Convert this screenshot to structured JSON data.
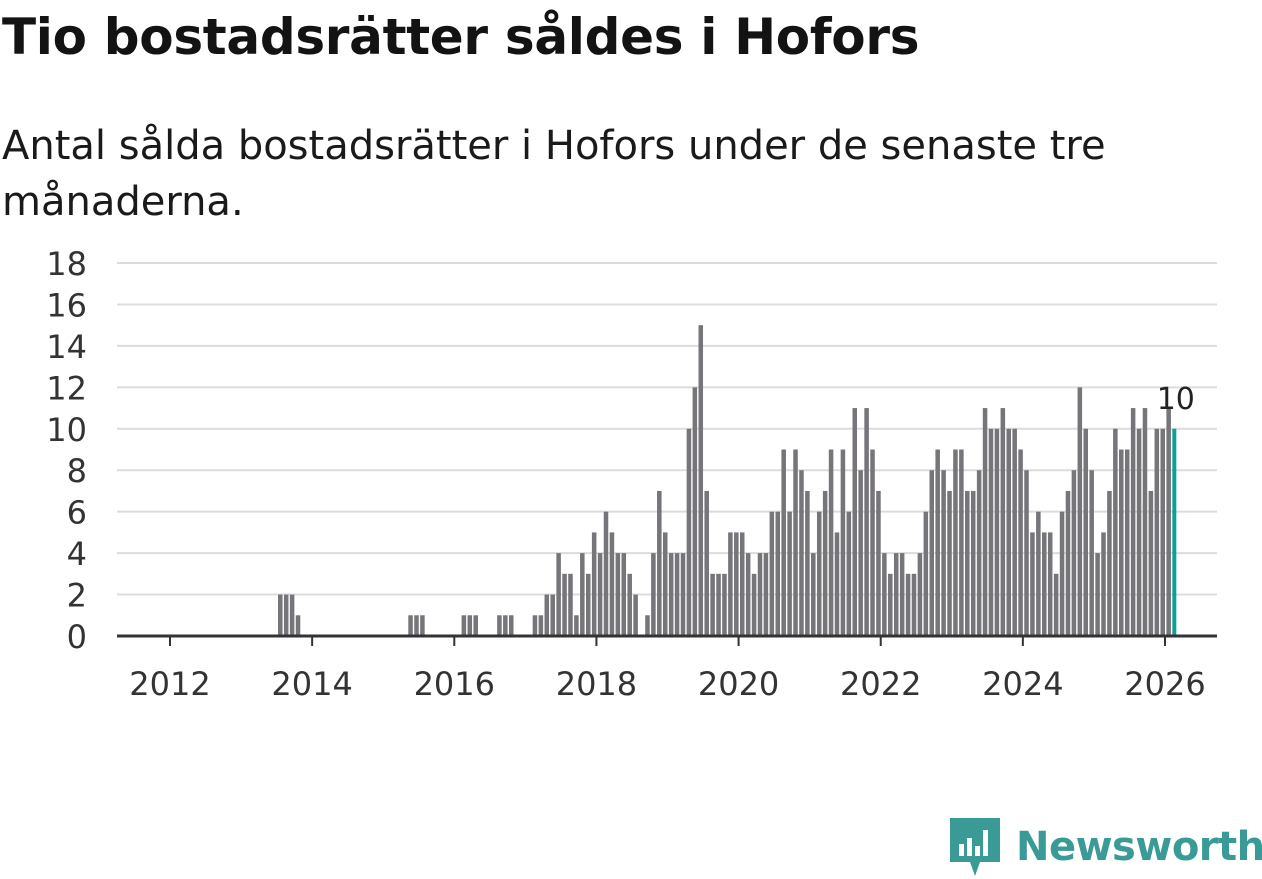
{
  "header": {
    "title": "Tio bostadsrätter såldes i Hofors",
    "subtitle": "Antal sålda bostadsrätter i Hofors under de senaste tre månaderna."
  },
  "brand": {
    "name": "Newsworthy"
  },
  "colors": {
    "bar": "#75757a",
    "highlight": "#0f9e9e",
    "brand": "#3a9a96"
  },
  "chart_data": {
    "type": "bar",
    "title": "Tio bostadsrätter såldes i Hofors",
    "subtitle": "Antal sålda bostadsrätter i Hofors under de senaste tre månaderna.",
    "xlabel": "",
    "ylabel": "",
    "start": "2011-01",
    "end": "2025-12",
    "ylim": [
      0,
      18
    ],
    "y_ticks": [
      "0",
      "2",
      "4",
      "6",
      "8",
      "10",
      "12",
      "14",
      "16",
      "18"
    ],
    "x_ticks": [
      "2012",
      "2014",
      "2016",
      "2018",
      "2020",
      "2022",
      "2024",
      "2026"
    ],
    "grid": true,
    "highlight_label": "10",
    "values": [
      0,
      0,
      0,
      0,
      0,
      0,
      0,
      0,
      0,
      0,
      0,
      0,
      0,
      0,
      0,
      0,
      0,
      0,
      0,
      0,
      0,
      0,
      0,
      0,
      0,
      0,
      0,
      0,
      0,
      0,
      2,
      2,
      2,
      1,
      0,
      0,
      0,
      0,
      0,
      0,
      0,
      0,
      0,
      0,
      0,
      0,
      0,
      0,
      0,
      0,
      0,
      0,
      1,
      1,
      1,
      0,
      0,
      0,
      0,
      0,
      0,
      1,
      1,
      1,
      0,
      0,
      0,
      1,
      1,
      1,
      0,
      0,
      0,
      1,
      1,
      2,
      2,
      4,
      3,
      3,
      1,
      4,
      3,
      5,
      4,
      6,
      5,
      4,
      4,
      3,
      2,
      0,
      1,
      4,
      7,
      5,
      4,
      4,
      4,
      10,
      12,
      15,
      7,
      3,
      3,
      3,
      5,
      5,
      5,
      4,
      3,
      4,
      4,
      6,
      6,
      9,
      6,
      9,
      8,
      7,
      4,
      6,
      7,
      9,
      5,
      9,
      6,
      11,
      8,
      11,
      9,
      7,
      4,
      3,
      4,
      4,
      3,
      3,
      4,
      6,
      8,
      9,
      8,
      7,
      9,
      9,
      7,
      7,
      8,
      11,
      10,
      10,
      11,
      10,
      10,
      9,
      8,
      5,
      6,
      5,
      5,
      3,
      6,
      7,
      8,
      12,
      10,
      8,
      4,
      5,
      7,
      10,
      9,
      9,
      11,
      10,
      11,
      7,
      10,
      10,
      11,
      10
    ]
  }
}
